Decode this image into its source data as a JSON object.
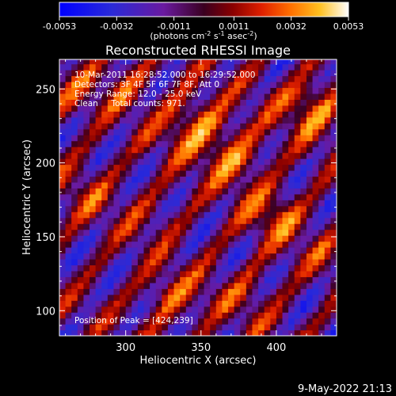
{
  "chart_data": {
    "type": "heatmap",
    "title": "Reconstructed RHESSI Image",
    "xlabel": "Heliocentric X (arcsec)",
    "ylabel": "Heliocentric Y (arcsec)",
    "xlim": [
      256,
      440
    ],
    "ylim": [
      83,
      270
    ],
    "xticks": [
      300,
      350,
      400
    ],
    "yticks": [
      100,
      150,
      200,
      250
    ],
    "colorbar": {
      "min": -0.0053,
      "max": 0.0053,
      "tick_values": [
        -0.0053,
        -0.0032,
        -0.0011,
        0.0011,
        0.0032,
        0.0053
      ],
      "tick_labels": [
        "-0.0053",
        "-0.0032",
        "-0.0011",
        "0.0011",
        "0.0032",
        "0.0053"
      ],
      "units_prefix": "(photons cm",
      "units_sup1": "-2",
      "units_mid1": " s",
      "units_sup2": "-1",
      "units_mid2": " asec",
      "units_sup3": "-2",
      "units_suffix": ")"
    },
    "annotations": [
      "10-Mar-2011 16:28:52.000 to 16:29:52.000",
      "Detectors: 3F 4F 5F 6F 7F 8F, Att 0",
      "Energy Range: 12.0 - 25.0 keV",
      "Clean     Total counts: 971."
    ],
    "peak_text": "Position of Peak = [424,239]",
    "peak": [
      424,
      239
    ],
    "map": {
      "pixel_size_arcsec": 4,
      "stripe_angle_deg": 52,
      "stripe_period_arcsec": 28,
      "bright_spots": [
        {
          "x": 345,
          "y": 227,
          "value": 0.0053
        },
        {
          "x": 372,
          "y": 205,
          "value": 0.0051
        },
        {
          "x": 424,
          "y": 239,
          "value": 0.0053
        },
        {
          "x": 398,
          "y": 165,
          "value": 0.0045
        },
        {
          "x": 330,
          "y": 108,
          "value": 0.0042
        },
        {
          "x": 300,
          "y": 255,
          "value": 0.0038
        },
        {
          "x": 262,
          "y": 245,
          "value": 0.0035
        },
        {
          "x": 275,
          "y": 180,
          "value": 0.0036
        },
        {
          "x": 380,
          "y": 110,
          "value": 0.0035
        },
        {
          "x": 430,
          "y": 140,
          "value": 0.003
        },
        {
          "x": 318,
          "y": 165,
          "value": 0.003
        }
      ]
    }
  },
  "footer": {
    "timestamp": "9-May-2022 21:13"
  }
}
